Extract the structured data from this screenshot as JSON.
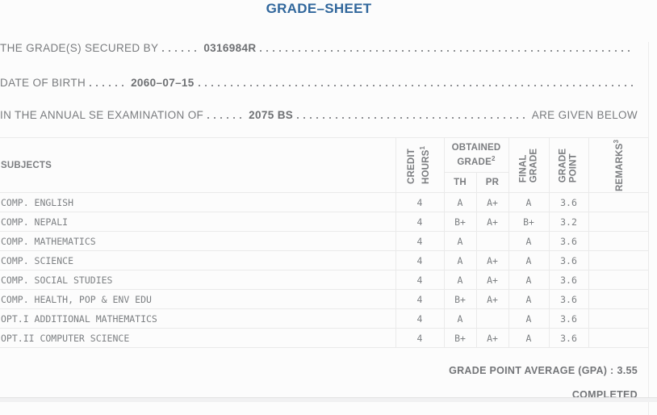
{
  "title": "GRADE–SHEET",
  "info_lines": [
    {
      "label": "THE GRADE(S) SECURED BY",
      "value": "0316984R",
      "suffix": ""
    },
    {
      "label": "DATE OF BIRTH",
      "value": "2060–07–15",
      "suffix": ""
    },
    {
      "label": "IN THE ANNUAL SE EXAMINATION OF",
      "value": "2075 BS",
      "suffix": "ARE GIVEN BELOW"
    }
  ],
  "table": {
    "headers": {
      "subjects": "SUBJECTS",
      "credit_hours": {
        "line1": "CREDIT",
        "line2": "HOURS",
        "sup": "1"
      },
      "obtained_grade": {
        "line1": "OBTAINED",
        "line2": "GRADE",
        "sup": "2"
      },
      "th": "TH",
      "pr": "PR",
      "final_grade": {
        "line1": "FINAL",
        "line2": "GRADE"
      },
      "grade_point": {
        "line1": "GRADE",
        "line2": "POINT"
      },
      "remarks": {
        "label": "REMARKS",
        "sup": "3"
      }
    },
    "rows": [
      {
        "subject": "COMP. ENGLISH",
        "credit_hours": "4",
        "th": "A",
        "pr": "A+",
        "final_grade": "A",
        "grade_point": "3.6",
        "remarks": ""
      },
      {
        "subject": "COMP. NEPALI",
        "credit_hours": "4",
        "th": "B+",
        "pr": "A+",
        "final_grade": "B+",
        "grade_point": "3.2",
        "remarks": ""
      },
      {
        "subject": "COMP. MATHEMATICS",
        "credit_hours": "4",
        "th": "A",
        "pr": "",
        "final_grade": "A",
        "grade_point": "3.6",
        "remarks": ""
      },
      {
        "subject": "COMP. SCIENCE",
        "credit_hours": "4",
        "th": "A",
        "pr": "A+",
        "final_grade": "A",
        "grade_point": "3.6",
        "remarks": ""
      },
      {
        "subject": "COMP. SOCIAL STUDIES",
        "credit_hours": "4",
        "th": "A",
        "pr": "A+",
        "final_grade": "A",
        "grade_point": "3.6",
        "remarks": ""
      },
      {
        "subject": "COMP. HEALTH, POP & ENV EDU",
        "credit_hours": "4",
        "th": "B+",
        "pr": "A+",
        "final_grade": "A",
        "grade_point": "3.6",
        "remarks": ""
      },
      {
        "subject": "OPT.I ADDITIONAL MATHEMATICS",
        "credit_hours": "4",
        "th": "A",
        "pr": "",
        "final_grade": "A",
        "grade_point": "3.6",
        "remarks": ""
      },
      {
        "subject": "OPT.II COMPUTER SCIENCE",
        "credit_hours": "4",
        "th": "B+",
        "pr": "A+",
        "final_grade": "A",
        "grade_point": "3.6",
        "remarks": ""
      }
    ]
  },
  "summary": {
    "gpa_label": "GRADE POINT AVERAGE (GPA) :",
    "gpa_value": "3.55",
    "status": "COMPLETED"
  },
  "colors": {
    "title_accent": "#31679c",
    "body_text": "#797b7e",
    "table_border": "#eaeaea"
  }
}
